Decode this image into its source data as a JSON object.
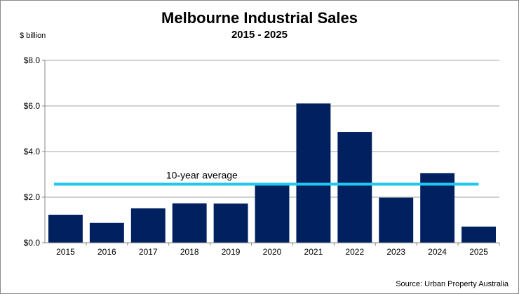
{
  "chart_data": {
    "type": "bar",
    "title": "Melbourne Industrial Sales",
    "subtitle": "2015 - 2025",
    "ylabel": "$ billion",
    "xlabel": "",
    "categories": [
      "2015",
      "2016",
      "2017",
      "2018",
      "2019",
      "2020",
      "2021",
      "2022",
      "2023",
      "2024",
      "2025"
    ],
    "values": [
      1.23,
      0.87,
      1.51,
      1.73,
      1.72,
      2.55,
      6.11,
      4.86,
      1.98,
      3.05,
      0.71
    ],
    "ylim": [
      0,
      8
    ],
    "yticks": [
      0,
      2,
      4,
      6,
      8
    ],
    "ytick_labels": [
      "$0.0",
      "$2.0",
      "$4.0",
      "$6.0",
      "$8.0"
    ],
    "grid": true,
    "average": {
      "label": "10-year average",
      "value": 2.57
    },
    "source": "Source: Urban Property Australia",
    "colors": {
      "bar": "#002060",
      "average": "#1EC8F0",
      "grid": "#a6a6a6"
    }
  }
}
